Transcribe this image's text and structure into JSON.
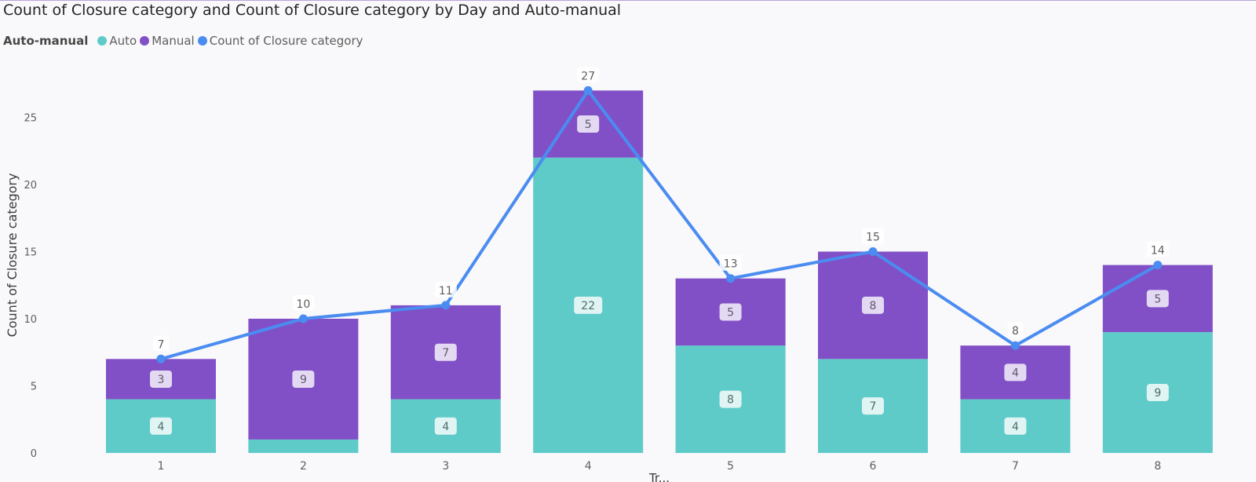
{
  "title": "Count of Closure category and Count of Closure category by Day and Auto-manual",
  "legend": {
    "title": "Auto-manual",
    "items": [
      {
        "label": "Auto",
        "color": "#5ecbc8"
      },
      {
        "label": "Manual",
        "color": "#8150c7"
      },
      {
        "label": "Count of Closure category",
        "color": "#4a8cf0"
      }
    ]
  },
  "chart_data": {
    "type": "bar",
    "stacked": true,
    "title": "Count of Closure category and Count of Closure category by Day and Auto-manual",
    "ylabel": "Count of Closure category",
    "xlabel": "Tr...",
    "categories": [
      "1",
      "2",
      "3",
      "4",
      "5",
      "6",
      "7",
      "8"
    ],
    "ylim": [
      0,
      28
    ],
    "yticks": [
      0,
      5,
      10,
      15,
      20,
      25
    ],
    "series": [
      {
        "name": "Auto",
        "type": "bar",
        "color": "#5ecbc8",
        "values": [
          4,
          1,
          4,
          22,
          8,
          7,
          4,
          9
        ],
        "labels": [
          "4",
          "",
          "4",
          "22",
          "8",
          "7",
          "4",
          "9"
        ]
      },
      {
        "name": "Manual",
        "type": "bar",
        "color": "#8150c7",
        "values": [
          3,
          9,
          7,
          5,
          5,
          8,
          4,
          5
        ],
        "labels": [
          "3",
          "9",
          "7",
          "5",
          "5",
          "8",
          "4",
          "5"
        ]
      },
      {
        "name": "Count of Closure category",
        "type": "line",
        "color": "#4a8cf0",
        "values": [
          7,
          10,
          11,
          27,
          13,
          15,
          8,
          14
        ]
      }
    ],
    "grid": false,
    "legend_position": "top-left"
  }
}
